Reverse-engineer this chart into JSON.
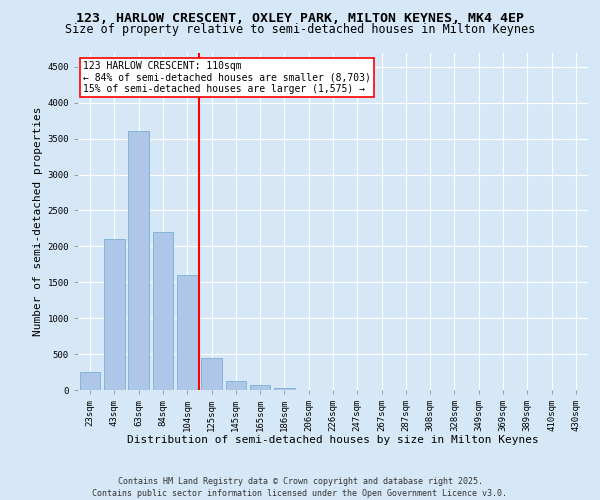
{
  "title_line1": "123, HARLOW CRESCENT, OXLEY PARK, MILTON KEYNES, MK4 4EP",
  "title_line2": "Size of property relative to semi-detached houses in Milton Keynes",
  "xlabel": "Distribution of semi-detached houses by size in Milton Keynes",
  "ylabel": "Number of semi-detached properties",
  "footer_line1": "Contains HM Land Registry data © Crown copyright and database right 2025.",
  "footer_line2": "Contains public sector information licensed under the Open Government Licence v3.0.",
  "categories": [
    "23sqm",
    "43sqm",
    "63sqm",
    "84sqm",
    "104sqm",
    "125sqm",
    "145sqm",
    "165sqm",
    "186sqm",
    "206sqm",
    "226sqm",
    "247sqm",
    "267sqm",
    "287sqm",
    "308sqm",
    "328sqm",
    "349sqm",
    "369sqm",
    "389sqm",
    "410sqm",
    "430sqm"
  ],
  "values": [
    250,
    2100,
    3600,
    2200,
    1600,
    450,
    130,
    65,
    30,
    0,
    0,
    0,
    0,
    0,
    0,
    0,
    0,
    0,
    0,
    0,
    0
  ],
  "bar_color": "#aec6e8",
  "bar_edge_color": "#7aafd4",
  "vline_x": 4.5,
  "vline_color": "red",
  "annotation_title": "123 HARLOW CRESCENT: 110sqm",
  "annotation_line1": "← 84% of semi-detached houses are smaller (8,703)",
  "annotation_line2": "15% of semi-detached houses are larger (1,575) →",
  "ylim": [
    0,
    4700
  ],
  "yticks": [
    0,
    500,
    1000,
    1500,
    2000,
    2500,
    3000,
    3500,
    4000,
    4500
  ],
  "bg_color": "#d6e8f7",
  "plot_bg_color": "#d6e8f7",
  "grid_color": "white",
  "title_fontsize": 9.5,
  "subtitle_fontsize": 8.5,
  "axis_label_fontsize": 8,
  "tick_fontsize": 6.5,
  "annotation_fontsize": 7,
  "footer_fontsize": 6
}
